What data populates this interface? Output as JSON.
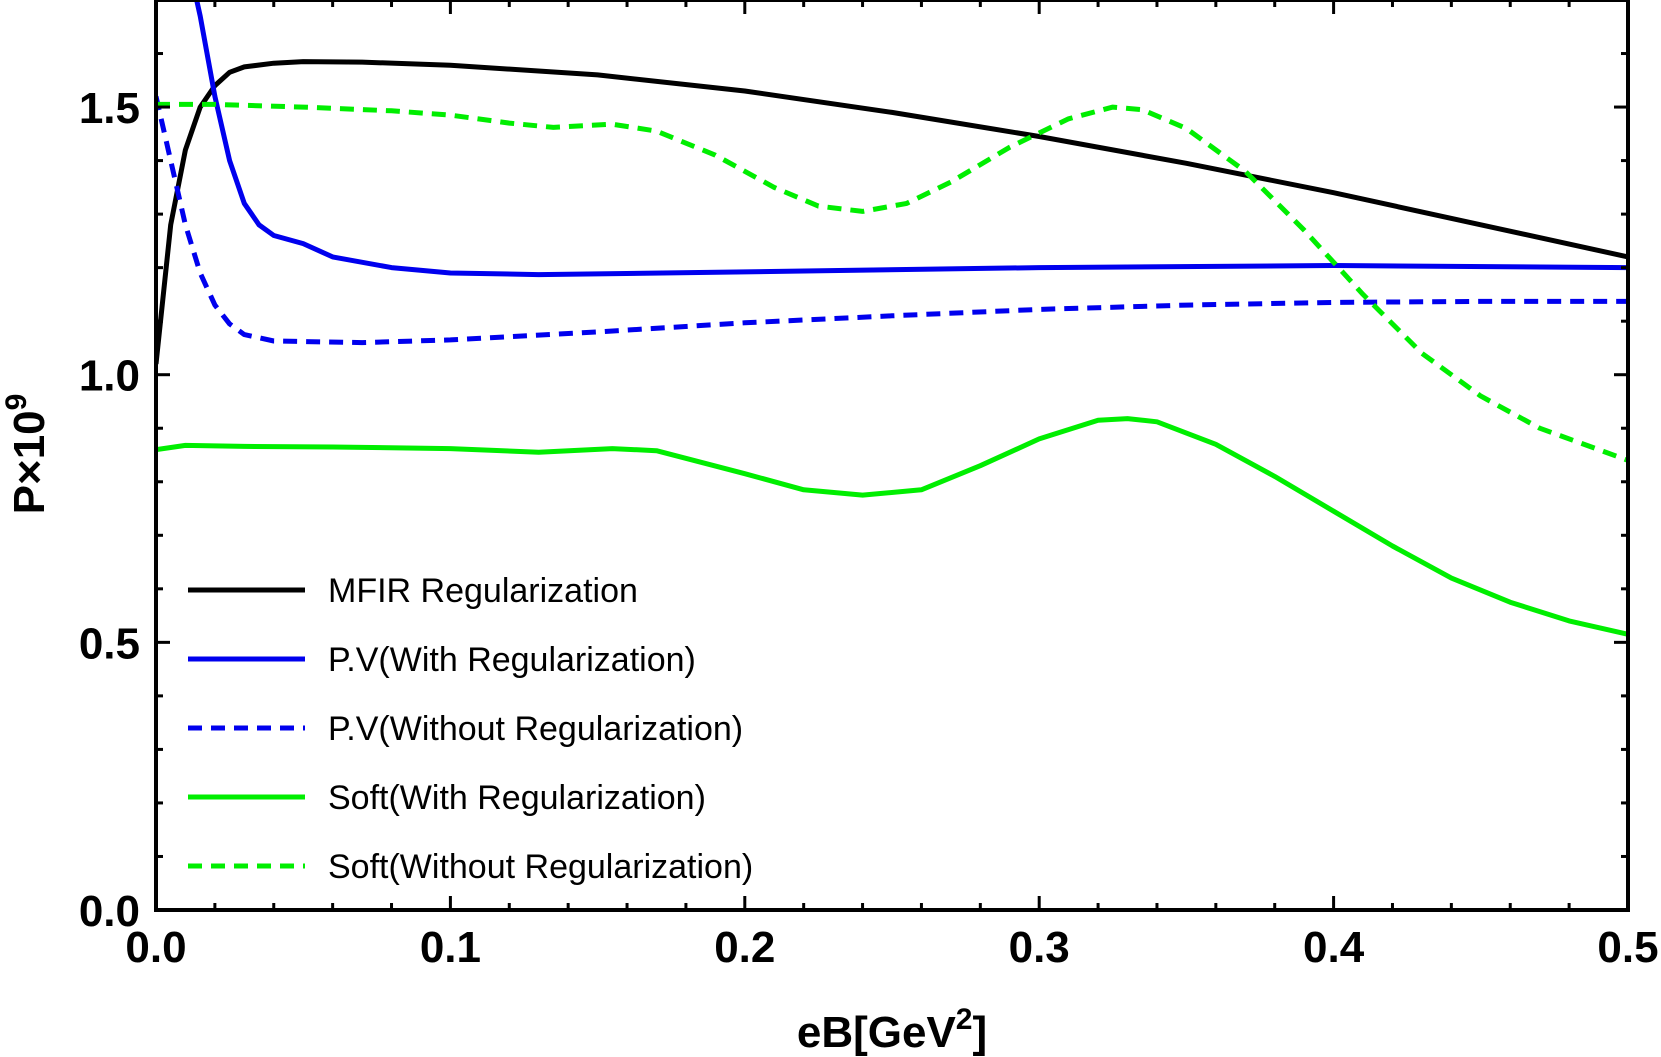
{
  "chart_data": {
    "type": "line",
    "xlabel": {
      "base": "eB[GeV",
      "sup": "2",
      "tail": "]"
    },
    "ylabel": {
      "base": "P×10",
      "sup": "9"
    },
    "xlim": [
      0,
      0.5
    ],
    "ylim": [
      0,
      1.7
    ],
    "xticks": [
      {
        "value": 0.0,
        "label": "0.0"
      },
      {
        "value": 0.1,
        "label": "0.1"
      },
      {
        "value": 0.2,
        "label": "0.2"
      },
      {
        "value": 0.3,
        "label": "0.3"
      },
      {
        "value": 0.4,
        "label": "0.4"
      },
      {
        "value": 0.5,
        "label": "0.5"
      }
    ],
    "yticks": [
      {
        "value": 0.0,
        "label": "0.0"
      },
      {
        "value": 0.5,
        "label": "0.5"
      },
      {
        "value": 1.0,
        "label": "1.0"
      },
      {
        "value": 1.5,
        "label": "1.5"
      }
    ],
    "grid": false,
    "legend_position": "bottom-left",
    "series": [
      {
        "name": "MFIR Regularization",
        "color": "#000000",
        "dashed": false,
        "points": [
          [
            0.0,
            1.02
          ],
          [
            0.005,
            1.28
          ],
          [
            0.01,
            1.42
          ],
          [
            0.015,
            1.5
          ],
          [
            0.02,
            1.54
          ],
          [
            0.025,
            1.565
          ],
          [
            0.03,
            1.575
          ],
          [
            0.04,
            1.582
          ],
          [
            0.05,
            1.585
          ],
          [
            0.07,
            1.584
          ],
          [
            0.1,
            1.578
          ],
          [
            0.15,
            1.56
          ],
          [
            0.2,
            1.53
          ],
          [
            0.25,
            1.49
          ],
          [
            0.3,
            1.445
          ],
          [
            0.35,
            1.395
          ],
          [
            0.4,
            1.34
          ],
          [
            0.45,
            1.28
          ],
          [
            0.5,
            1.22
          ]
        ]
      },
      {
        "name": "P.V(With Regularization)",
        "color": "#0000ee",
        "dashed": false,
        "points": [
          [
            0.013,
            1.72
          ],
          [
            0.015,
            1.67
          ],
          [
            0.02,
            1.52
          ],
          [
            0.025,
            1.4
          ],
          [
            0.03,
            1.32
          ],
          [
            0.035,
            1.28
          ],
          [
            0.04,
            1.26
          ],
          [
            0.05,
            1.245
          ],
          [
            0.06,
            1.22
          ],
          [
            0.08,
            1.2
          ],
          [
            0.1,
            1.19
          ],
          [
            0.13,
            1.187
          ],
          [
            0.2,
            1.192
          ],
          [
            0.3,
            1.2
          ],
          [
            0.4,
            1.204
          ],
          [
            0.5,
            1.2
          ]
        ]
      },
      {
        "name": "P.V(Without Regularization)",
        "color": "#0000ee",
        "dashed": true,
        "points": [
          [
            0.0,
            1.52
          ],
          [
            0.005,
            1.4
          ],
          [
            0.01,
            1.28
          ],
          [
            0.015,
            1.19
          ],
          [
            0.02,
            1.13
          ],
          [
            0.025,
            1.095
          ],
          [
            0.03,
            1.075
          ],
          [
            0.04,
            1.063
          ],
          [
            0.07,
            1.06
          ],
          [
            0.1,
            1.065
          ],
          [
            0.15,
            1.08
          ],
          [
            0.2,
            1.097
          ],
          [
            0.25,
            1.11
          ],
          [
            0.3,
            1.122
          ],
          [
            0.35,
            1.13
          ],
          [
            0.4,
            1.135
          ],
          [
            0.45,
            1.137
          ],
          [
            0.5,
            1.137
          ]
        ]
      },
      {
        "name": "Soft(With Regularization)",
        "color": "#00ee00",
        "dashed": false,
        "points": [
          [
            0.0,
            0.86
          ],
          [
            0.01,
            0.868
          ],
          [
            0.03,
            0.866
          ],
          [
            0.06,
            0.865
          ],
          [
            0.1,
            0.862
          ],
          [
            0.13,
            0.855
          ],
          [
            0.155,
            0.862
          ],
          [
            0.17,
            0.858
          ],
          [
            0.2,
            0.815
          ],
          [
            0.22,
            0.785
          ],
          [
            0.24,
            0.775
          ],
          [
            0.26,
            0.785
          ],
          [
            0.28,
            0.83
          ],
          [
            0.3,
            0.88
          ],
          [
            0.32,
            0.915
          ],
          [
            0.33,
            0.918
          ],
          [
            0.34,
            0.912
          ],
          [
            0.36,
            0.87
          ],
          [
            0.38,
            0.81
          ],
          [
            0.4,
            0.745
          ],
          [
            0.42,
            0.68
          ],
          [
            0.44,
            0.62
          ],
          [
            0.46,
            0.575
          ],
          [
            0.48,
            0.54
          ],
          [
            0.5,
            0.515
          ]
        ]
      },
      {
        "name": "Soft(Without Regularization)",
        "color": "#00ee00",
        "dashed": true,
        "points": [
          [
            0.0,
            1.505
          ],
          [
            0.02,
            1.505
          ],
          [
            0.05,
            1.5
          ],
          [
            0.08,
            1.493
          ],
          [
            0.1,
            1.485
          ],
          [
            0.12,
            1.47
          ],
          [
            0.135,
            1.462
          ],
          [
            0.155,
            1.468
          ],
          [
            0.17,
            1.455
          ],
          [
            0.19,
            1.41
          ],
          [
            0.21,
            1.35
          ],
          [
            0.225,
            1.315
          ],
          [
            0.24,
            1.305
          ],
          [
            0.255,
            1.32
          ],
          [
            0.27,
            1.36
          ],
          [
            0.29,
            1.425
          ],
          [
            0.31,
            1.478
          ],
          [
            0.325,
            1.5
          ],
          [
            0.335,
            1.495
          ],
          [
            0.35,
            1.46
          ],
          [
            0.37,
            1.38
          ],
          [
            0.39,
            1.27
          ],
          [
            0.41,
            1.15
          ],
          [
            0.43,
            1.04
          ],
          [
            0.45,
            0.96
          ],
          [
            0.47,
            0.9
          ],
          [
            0.49,
            0.86
          ],
          [
            0.5,
            0.84
          ]
        ]
      }
    ]
  }
}
